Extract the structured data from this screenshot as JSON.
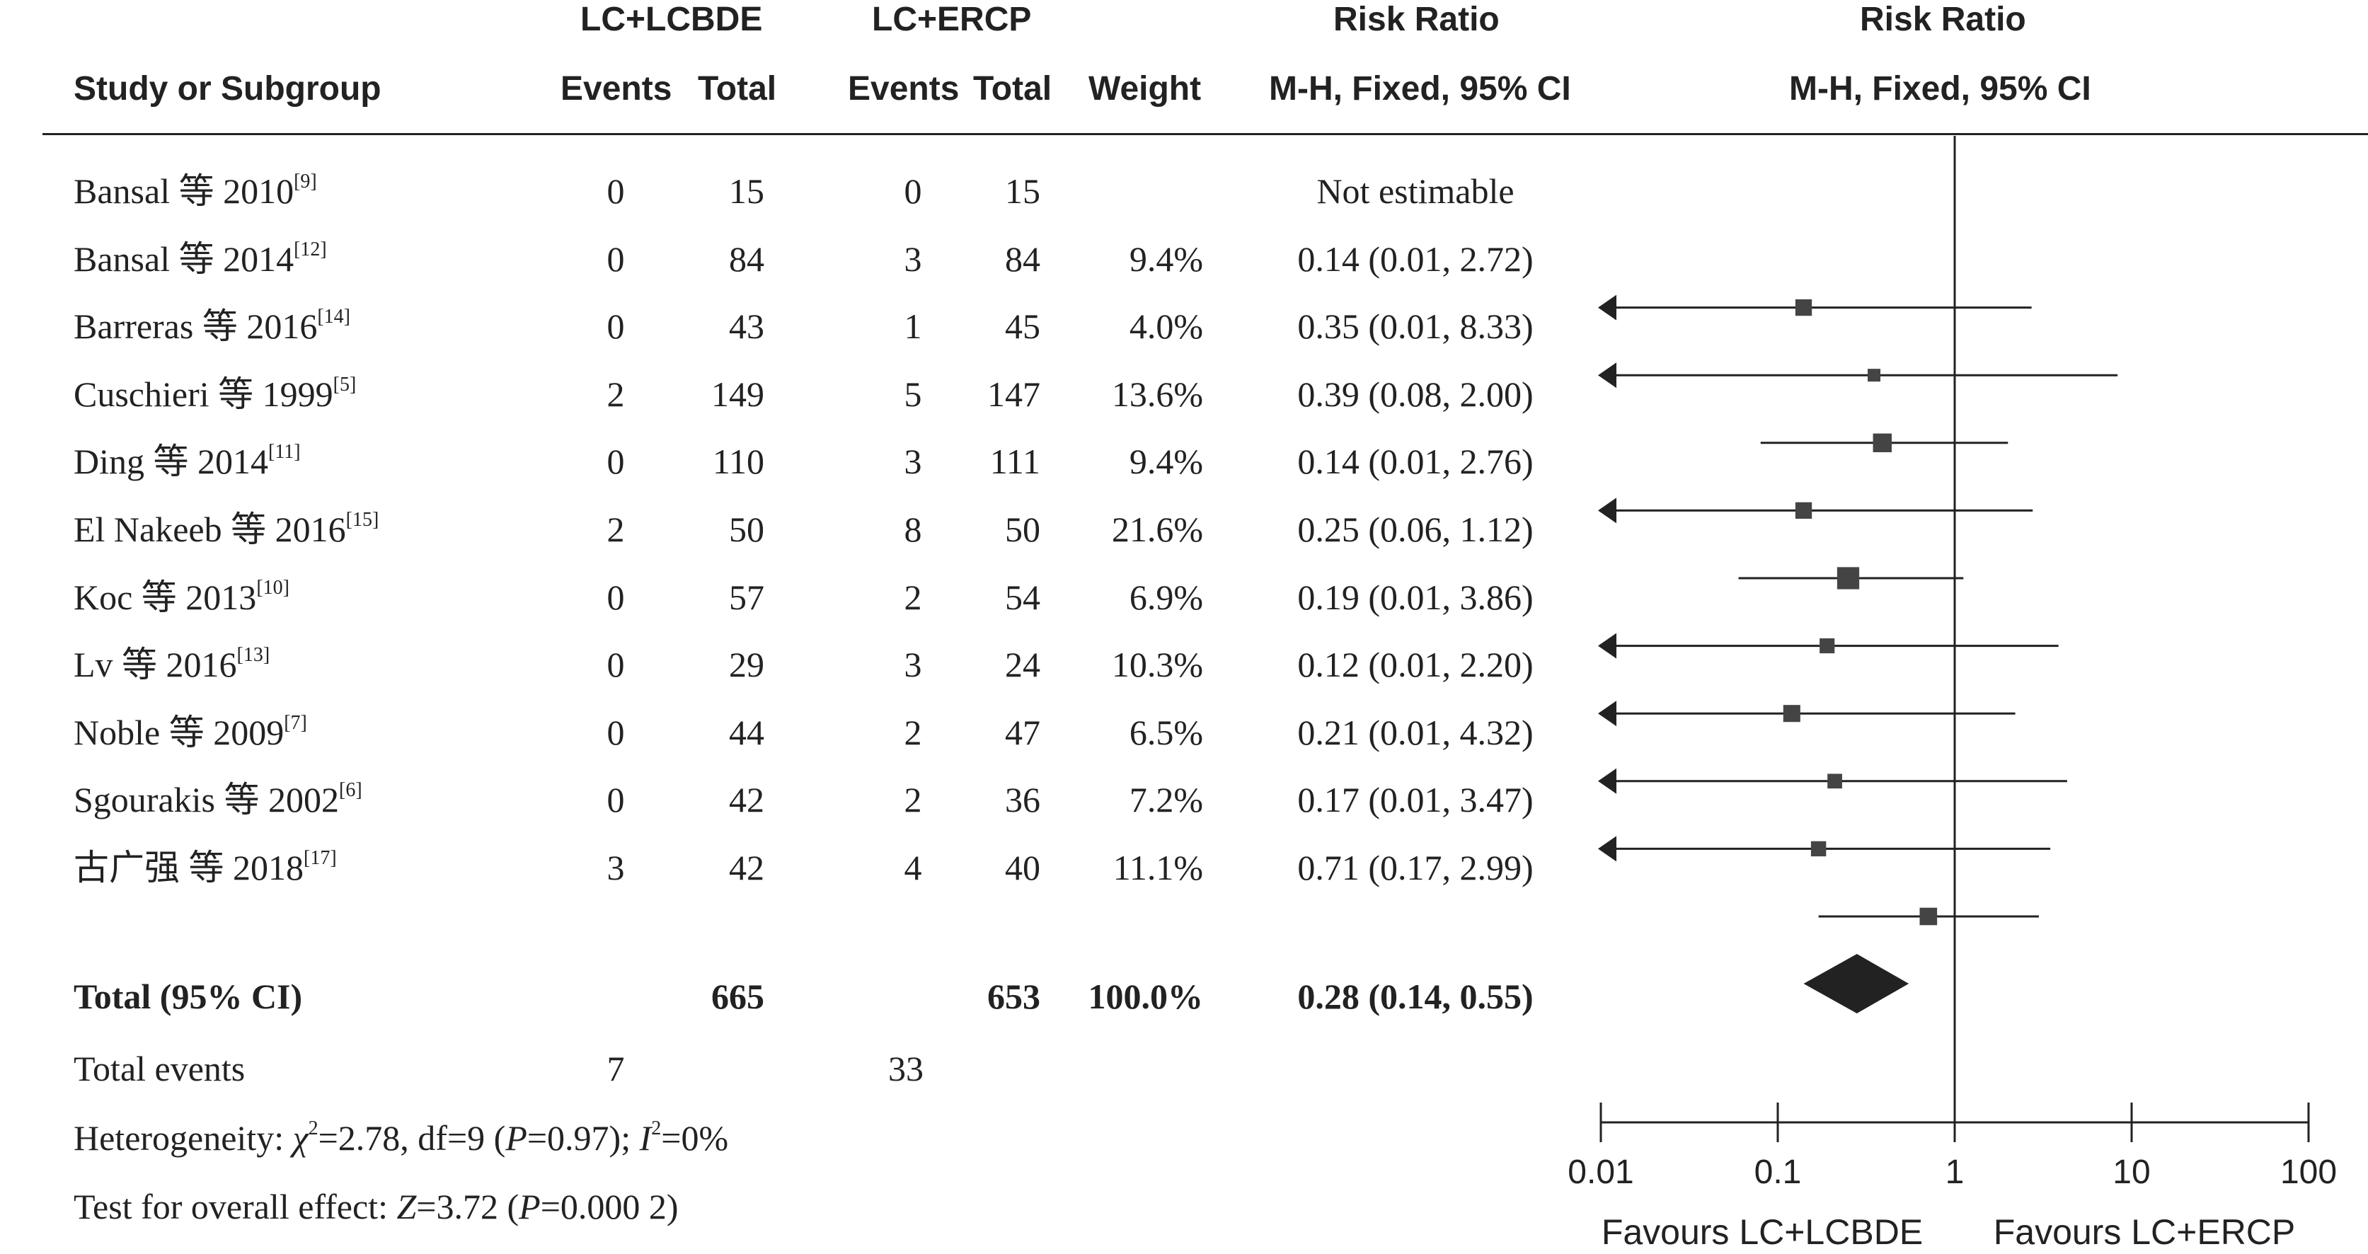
{
  "header": {
    "group1": "LC+LCBDE",
    "group2": "LC+ERCP",
    "rr1": "Risk Ratio",
    "rr2": "Risk Ratio",
    "study": "Study or Subgroup",
    "events1": "Events",
    "total1": "Total",
    "events2": "Events",
    "total2": "Total",
    "weight": "Weight",
    "mh1": "M-H, Fixed, 95% CI",
    "mh2": "M-H, Fixed, 95% CI"
  },
  "studies": [
    {
      "name": "Bansal 等 2010",
      "ref": "[9]",
      "e1": "0",
      "n1": "15",
      "e2": "0",
      "n2": "15",
      "weight": "",
      "ci_text": "Not estimable"
    },
    {
      "name": "Bansal 等 2014",
      "ref": "[12]",
      "e1": "0",
      "n1": "84",
      "e2": "3",
      "n2": "84",
      "weight": "9.4%",
      "ci_text": "0.14 (0.01, 2.72)"
    },
    {
      "name": "Barreras 等 2016",
      "ref": "[14]",
      "e1": "0",
      "n1": "43",
      "e2": "1",
      "n2": "45",
      "weight": "4.0%",
      "ci_text": "0.35 (0.01, 8.33)"
    },
    {
      "name": "Cuschieri 等 1999",
      "ref": "[5]",
      "e1": "2",
      "n1": "149",
      "e2": "5",
      "n2": "147",
      "weight": "13.6%",
      "ci_text": "0.39 (0.08, 2.00)"
    },
    {
      "name": "Ding 等 2014",
      "ref": "[11]",
      "e1": "0",
      "n1": "110",
      "e2": "3",
      "n2": "111",
      "weight": "9.4%",
      "ci_text": "0.14 (0.01, 2.76)"
    },
    {
      "name": "El Nakeeb 等 2016",
      "ref": "[15]",
      "e1": "2",
      "n1": "50",
      "e2": "8",
      "n2": "50",
      "weight": "21.6%",
      "ci_text": "0.25 (0.06, 1.12)"
    },
    {
      "name": "Koc 等 2013",
      "ref": "[10]",
      "e1": "0",
      "n1": "57",
      "e2": "2",
      "n2": "54",
      "weight": "6.9%",
      "ci_text": "0.19 (0.01, 3.86)"
    },
    {
      "name": "Lv 等 2016",
      "ref": "[13]",
      "e1": "0",
      "n1": "29",
      "e2": "3",
      "n2": "24",
      "weight": "10.3%",
      "ci_text": "0.12 (0.01, 2.20)"
    },
    {
      "name": "Noble 等 2009",
      "ref": "[7]",
      "e1": "0",
      "n1": "44",
      "e2": "2",
      "n2": "47",
      "weight": "6.5%",
      "ci_text": "0.21 (0.01, 4.32)"
    },
    {
      "name": "Sgourakis 等 2002",
      "ref": "[6]",
      "e1": "0",
      "n1": "42",
      "e2": "2",
      "n2": "36",
      "weight": "7.2%",
      "ci_text": "0.17 (0.01, 3.47)"
    },
    {
      "name": "古广强 等 2018",
      "ref": "[17]",
      "e1": "3",
      "n1": "42",
      "e2": "4",
      "n2": "40",
      "weight": "11.1%",
      "ci_text": "0.71 (0.17, 2.99)"
    }
  ],
  "total": {
    "label": "Total (95% CI)",
    "n1": "665",
    "n2": "653",
    "weight": "100.0%",
    "ci_text": "0.28 (0.14, 0.55)"
  },
  "total_events": {
    "label": "Total events",
    "e1": "7",
    "e2": "33"
  },
  "heterogeneity": {
    "prefix": "Heterogeneity: ",
    "chi_sym": "χ",
    "chi_val": "=2.78, df=9 (",
    "p_sym": "P",
    "p_val": "=0.97); ",
    "i_sym": "I",
    "i_val": "=0%"
  },
  "overall_effect": {
    "prefix": "Test for overall effect: ",
    "z_sym": "Z",
    "z_val": "=3.72 (",
    "p_sym": "P",
    "p_val": "=0.000 2)"
  },
  "chart_data": {
    "type": "scatter",
    "scale": "log",
    "xlim": [
      0.01,
      100
    ],
    "ticks": [
      "0.01",
      "0.1",
      "1",
      "10",
      "100"
    ],
    "favours_left": "Favours LC+LCBDE",
    "favours_right": "Favours LC+ERCP",
    "null_line": 1,
    "points": [
      {
        "rr": null,
        "lo": null,
        "hi": null,
        "weight": 0
      },
      {
        "rr": 0.14,
        "lo": 0.01,
        "hi": 2.72,
        "weight": 9.4
      },
      {
        "rr": 0.35,
        "lo": 0.01,
        "hi": 8.33,
        "weight": 4.0
      },
      {
        "rr": 0.39,
        "lo": 0.08,
        "hi": 2.0,
        "weight": 13.6
      },
      {
        "rr": 0.14,
        "lo": 0.01,
        "hi": 2.76,
        "weight": 9.4
      },
      {
        "rr": 0.25,
        "lo": 0.06,
        "hi": 1.12,
        "weight": 21.6
      },
      {
        "rr": 0.19,
        "lo": 0.01,
        "hi": 3.86,
        "weight": 6.9
      },
      {
        "rr": 0.12,
        "lo": 0.01,
        "hi": 2.2,
        "weight": 10.3
      },
      {
        "rr": 0.21,
        "lo": 0.01,
        "hi": 4.32,
        "weight": 6.5
      },
      {
        "rr": 0.17,
        "lo": 0.01,
        "hi": 3.47,
        "weight": 7.2
      },
      {
        "rr": 0.71,
        "lo": 0.17,
        "hi": 2.99,
        "weight": 11.1
      }
    ],
    "pooled": {
      "rr": 0.28,
      "lo": 0.14,
      "hi": 0.55
    }
  }
}
